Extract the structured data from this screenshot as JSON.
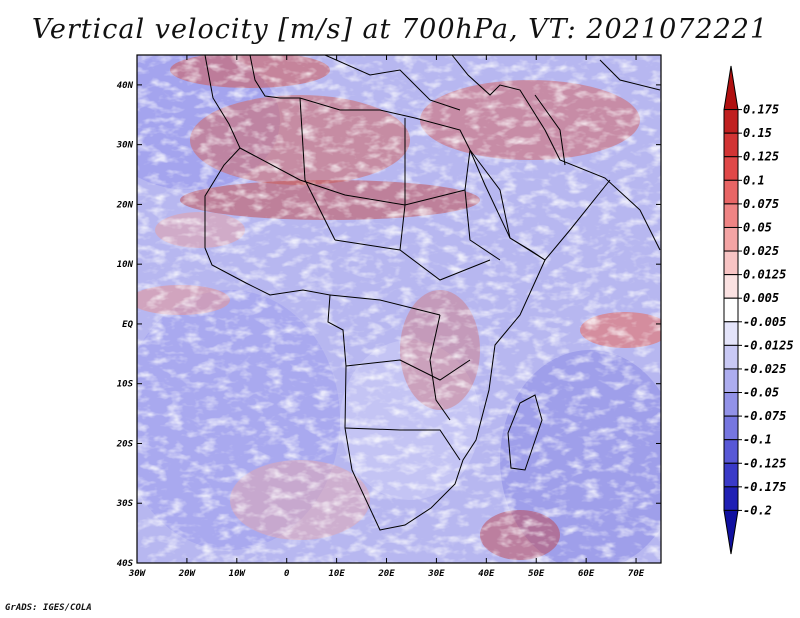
{
  "chart_data": {
    "type": "heatmap",
    "title": "Vertical velocity [m/s] at 700hPa, VT: 2021072221",
    "variable": "Vertical velocity",
    "units": "m/s",
    "level": "700hPa",
    "valid_time": "2021072221",
    "x_axis": {
      "range": [
        -30,
        75
      ],
      "ticks": [
        -30,
        -20,
        -10,
        0,
        10,
        20,
        30,
        40,
        50,
        60,
        70
      ],
      "tick_labels": [
        "30W",
        "20W",
        "10W",
        "0",
        "10E",
        "20E",
        "30E",
        "40E",
        "50E",
        "60E",
        "70E"
      ]
    },
    "y_axis": {
      "range": [
        -40,
        45
      ],
      "ticks": [
        -40,
        -30,
        -20,
        -10,
        0,
        10,
        20,
        30,
        40
      ],
      "tick_labels": [
        "40S",
        "30S",
        "20S",
        "10S",
        "EQ",
        "10N",
        "20N",
        "30N",
        "40N"
      ]
    },
    "colorbar": {
      "levels": [
        "0.175",
        "0.15",
        "0.125",
        "0.1",
        "0.075",
        "0.05",
        "0.025",
        "0.0125",
        "0.005",
        "-0.005",
        "-0.0125",
        "-0.025",
        "-0.05",
        "-0.075",
        "-0.1",
        "-0.125",
        "-0.175",
        "-0.2"
      ],
      "colors": [
        "#b01010",
        "#c02020",
        "#d23434",
        "#e04848",
        "#e86565",
        "#ef8484",
        "#f4a4a4",
        "#f8c4c4",
        "#fbe2e2",
        "#ffffff",
        "#e4e4fa",
        "#c9c9f5",
        "#adadef",
        "#9292e8",
        "#7676e0",
        "#5858d6",
        "#3a3ac8",
        "#2020b4",
        "#1010a0"
      ]
    }
  },
  "footer": "GrADS: IGES/COLA"
}
